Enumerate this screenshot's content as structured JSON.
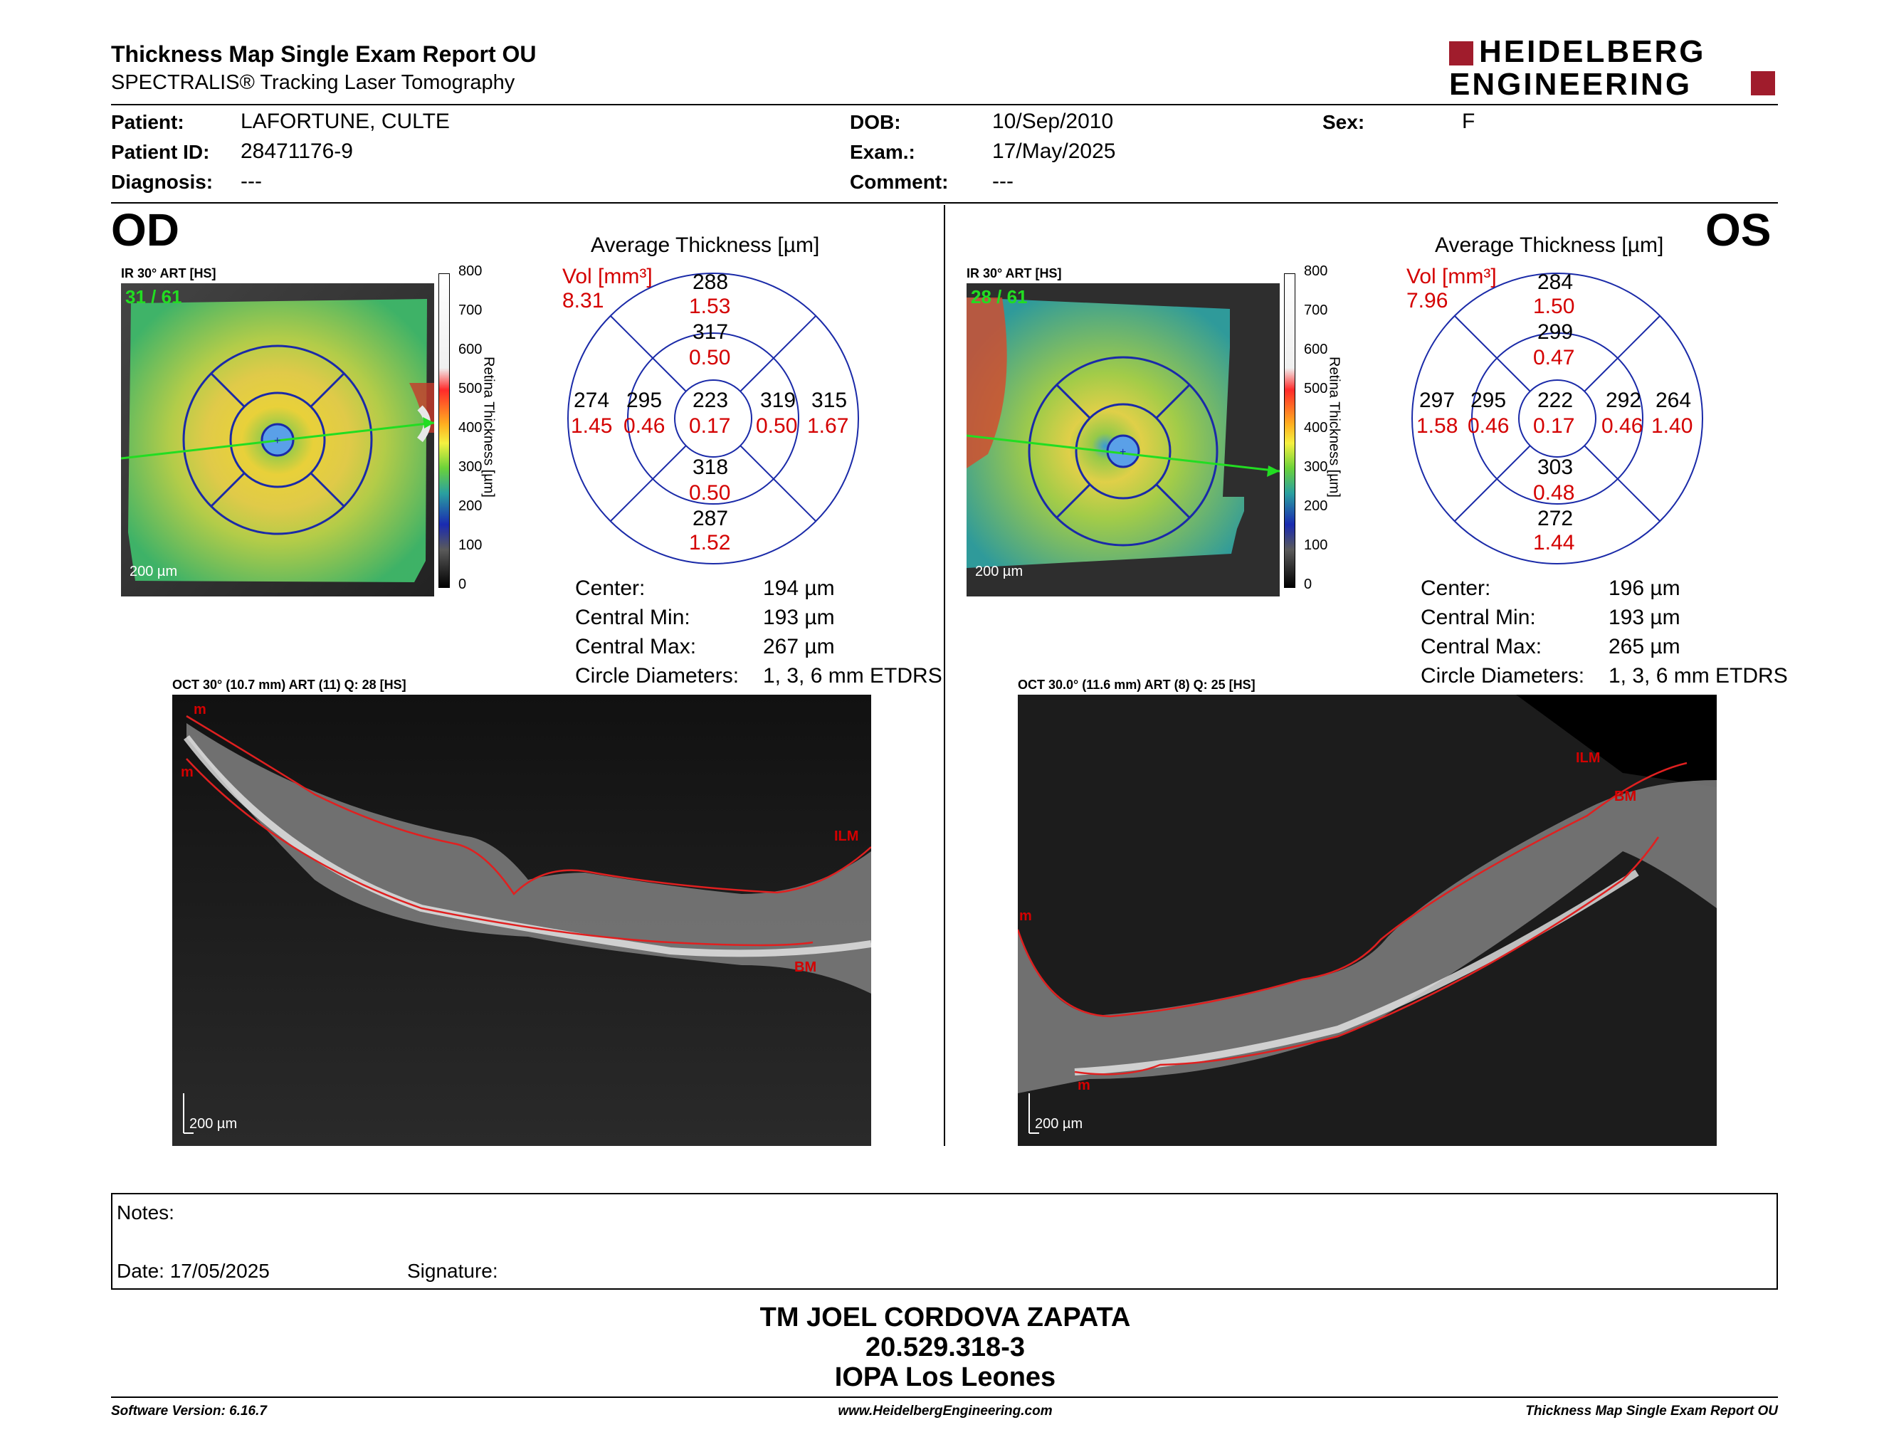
{
  "header": {
    "title": "Thickness Map Single Exam Report OU",
    "subtitle": "SPECTRALIS® Tracking Laser Tomography",
    "logo_line1": "HEIDELBERG",
    "logo_line2": "ENGINEERING"
  },
  "patient": {
    "patient_label": "Patient:",
    "patient_value": "LAFORTUNE, CULTE",
    "id_label": "Patient ID:",
    "id_value": "28471176-9",
    "diagnosis_label": "Diagnosis:",
    "diagnosis_value": "---",
    "dob_label": "DOB:",
    "dob_value": "10/Sep/2010",
    "exam_label": "Exam.:",
    "exam_value": "17/May/2025",
    "comment_label": "Comment:",
    "comment_value": "---",
    "sex_label": "Sex:",
    "sex_value": "F"
  },
  "colorbar": {
    "ticks": [
      "800",
      "700",
      "600",
      "500",
      "400",
      "300",
      "200",
      "100",
      "0"
    ],
    "label": "Retina Thickness [µm]"
  },
  "od": {
    "eye": "OD",
    "ir_label": "IR 30° ART [HS]",
    "ir_count": "31 / 61",
    "scale": "200 µm",
    "avg_title": "Average Thickness [µm]",
    "vol_label": "Vol [mm³]",
    "vol_value": "8.31",
    "etdrs": {
      "outer_sup": [
        "288",
        "1.53"
      ],
      "inner_sup": [
        "317",
        "0.50"
      ],
      "outer_temp": [
        "274",
        "1.45"
      ],
      "inner_temp": [
        "295",
        "0.46"
      ],
      "center": [
        "223",
        "0.17"
      ],
      "inner_nasal": [
        "319",
        "0.50"
      ],
      "outer_nasal": [
        "315",
        "1.67"
      ],
      "inner_inf": [
        "318",
        "0.50"
      ],
      "outer_inf": [
        "287",
        "1.52"
      ]
    },
    "stats": [
      {
        "k": "Center:",
        "v": "194 µm"
      },
      {
        "k": "Central Min:",
        "v": "193 µm"
      },
      {
        "k": "Central Max:",
        "v": "267 µm"
      },
      {
        "k": "Circle Diameters:",
        "v": "1, 3, 6 mm ETDRS"
      }
    ],
    "oct_label": "OCT 30° (10.7 mm) ART (11) Q: 28 [HS]",
    "oct_scale": "200 µm",
    "m1": "m",
    "m2": "m",
    "ilm": "ILM",
    "bm": "BM"
  },
  "os": {
    "eye": "OS",
    "ir_label": "IR 30° ART [HS]",
    "ir_count": "28 / 61",
    "scale": "200 µm",
    "avg_title": "Average Thickness [µm]",
    "vol_label": "Vol [mm³]",
    "vol_value": "7.96",
    "etdrs": {
      "outer_sup": [
        "284",
        "1.50"
      ],
      "inner_sup": [
        "299",
        "0.47"
      ],
      "outer_temp": [
        "297",
        "1.58"
      ],
      "inner_temp": [
        "295",
        "0.46"
      ],
      "center": [
        "222",
        "0.17"
      ],
      "inner_nasal": [
        "292",
        "0.46"
      ],
      "outer_nasal": [
        "264",
        "1.40"
      ],
      "inner_inf": [
        "303",
        "0.48"
      ],
      "outer_inf": [
        "272",
        "1.44"
      ]
    },
    "stats": [
      {
        "k": "Center:",
        "v": "196 µm"
      },
      {
        "k": "Central Min:",
        "v": "193 µm"
      },
      {
        "k": "Central Max:",
        "v": "265 µm"
      },
      {
        "k": "Circle Diameters:",
        "v": "1, 3, 6 mm ETDRS"
      }
    ],
    "oct_label": "OCT 30.0° (11.6 mm) ART (8) Q: 25 [HS]",
    "oct_scale": "200 µm",
    "m1": "m",
    "m2": "m",
    "ilm": "ILM",
    "bm": "BM"
  },
  "notes": {
    "notes_label": "Notes:",
    "date_label": "Date: 17/05/2025",
    "signature_label": "Signature:"
  },
  "signature": {
    "line1": "TM JOEL CORDOVA ZAPATA",
    "line2": "20.529.318-3",
    "line3": "IOPA Los Leones"
  },
  "footer": {
    "left": "Software Version: 6.16.7",
    "center": "www.HeidelbergEngineering.com",
    "right": "Thickness Map Single Exam Report OU"
  }
}
